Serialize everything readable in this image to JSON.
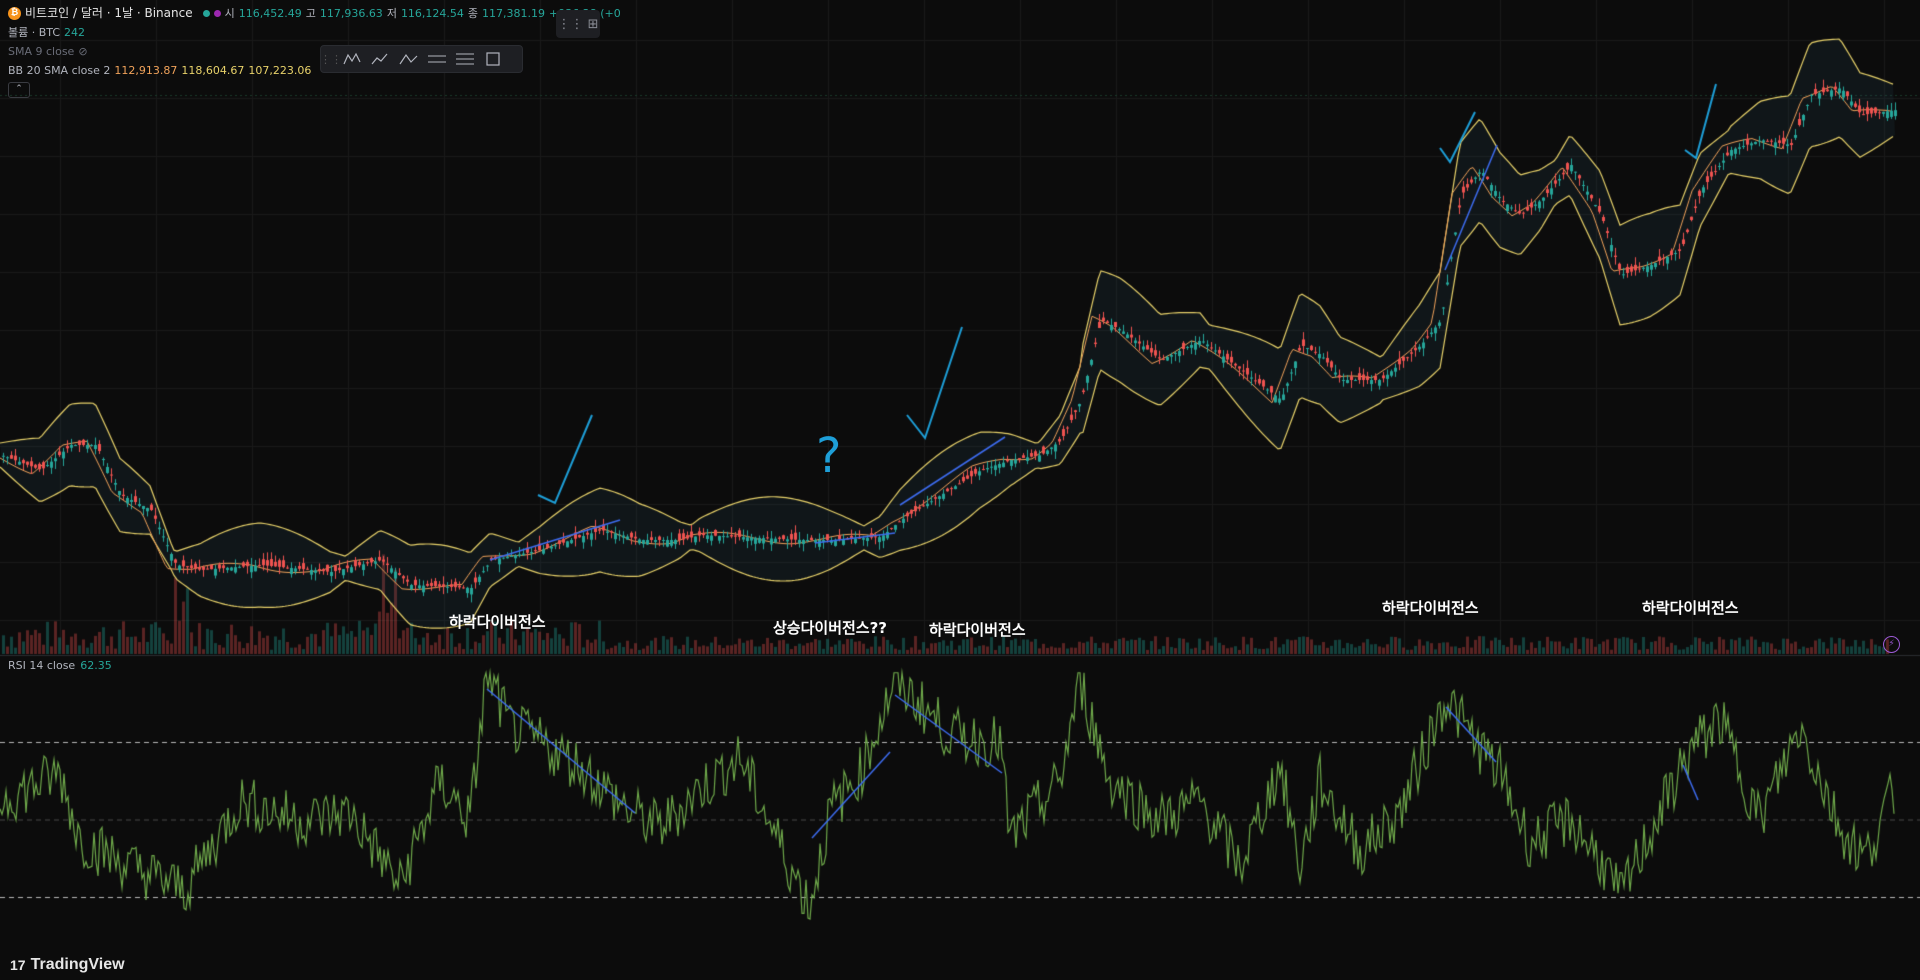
{
  "symbol": {
    "icon": "bitcoin-icon",
    "icon_glyph": "₿",
    "title": "비트코인 / 달러 · 1날 · Binance"
  },
  "ohlc": {
    "open_label": "시",
    "open": "116,452.49",
    "high_label": "고",
    "high": "117,936.63",
    "low_label": "저",
    "low": "116,124.54",
    "close_label": "종",
    "close": "117,381.19",
    "change": "+936.28 (+0"
  },
  "volume": {
    "label": "볼륨 · BTC",
    "value": "242"
  },
  "sma": {
    "label": "SMA 9 close",
    "hidden_icon": "eye-crossed-icon"
  },
  "bb": {
    "label": "BB 20 SMA close 2",
    "basis": "112,913.87",
    "upper": "118,604.67",
    "lower": "107,223.06",
    "basis_color": "#f0a25a",
    "band_color": "#e8d26a"
  },
  "toolbar": {
    "tools": [
      "pattern-tool-icon",
      "elliott-wave-icon",
      "abc-pattern-icon",
      "parallel-channel-icon",
      "fib-retracement-icon",
      "rectangle-tool-icon"
    ]
  },
  "layout_button": {
    "icon": "layout-grid-icon"
  },
  "annotations": {
    "bear_div_1": "하락다이버전스",
    "bull_div": "상승다이버전스??",
    "bear_div_2": "하락다이버전스",
    "bear_div_3": "하락다이버전스",
    "bear_div_4": "하락다이버전스",
    "question_mark": "?"
  },
  "rsi": {
    "label": "RSI 14 close",
    "value": "62.35",
    "line_color": "#6ea84a"
  },
  "brand": {
    "logo_glyph": "17",
    "name": "TradingView"
  },
  "colors": {
    "background": "#0c0c0c",
    "up": "#26a69a",
    "down": "#ef5350",
    "drawing_blue": "#3d6cf0",
    "drawing_cyan": "#1e9fd8"
  },
  "chart_data": [
    {
      "type": "candlestick",
      "title": "비트코인 / 달러 · 1날 · Binance",
      "indicators": [
        "SMA 9 close",
        "BB 20 SMA close 2",
        "볼륨"
      ],
      "last_close": 117381.19,
      "ylim_note": "price axis not shown"
    },
    {
      "type": "line",
      "title": "RSI 14 close",
      "last": 62.35,
      "levels": [
        70,
        50,
        30
      ]
    }
  ]
}
